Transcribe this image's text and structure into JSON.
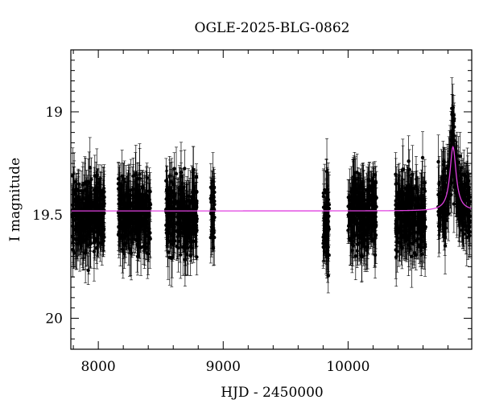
{
  "chart_data": {
    "type": "scatter",
    "title": "OGLE-2025-BLG-0862",
    "xlabel": "HJD - 2450000",
    "ylabel": "I magnitude",
    "xlim": [
      7780,
      10990
    ],
    "ylim": [
      20.15,
      18.7
    ],
    "y_inverted": true,
    "xticks": [
      8000,
      9000,
      10000
    ],
    "xtick_labels": [
      "8000",
      "9000",
      "10000"
    ],
    "yticks": [
      19,
      19.5,
      20
    ],
    "ytick_labels": [
      "19",
      "19.5",
      "20"
    ],
    "grid": false,
    "legend": "none",
    "colors": {
      "points": "#000000",
      "model": "#e040e0",
      "frame": "#000000"
    },
    "series": [
      {
        "kind": "observations",
        "seasons": [
          {
            "x_range": [
              7790,
              8050
            ],
            "mean_mag": 19.5,
            "scatter": 0.12,
            "error_bar": 0.1
          },
          {
            "x_range": [
              8160,
              8420
            ],
            "mean_mag": 19.5,
            "scatter": 0.12,
            "error_bar": 0.1
          },
          {
            "x_range": [
              8540,
              8790
            ],
            "mean_mag": 19.5,
            "scatter": 0.12,
            "error_bar": 0.1
          },
          {
            "x_range": [
              8900,
              8930
            ],
            "mean_mag": 19.5,
            "scatter": 0.1,
            "error_bar": 0.1
          },
          {
            "x_range": [
              9800,
              9850
            ],
            "mean_mag": 19.55,
            "scatter": 0.15,
            "error_bar": 0.12
          },
          {
            "x_range": [
              10000,
              10230
            ],
            "mean_mag": 19.5,
            "scatter": 0.13,
            "error_bar": 0.1
          },
          {
            "x_range": [
              10380,
              10620
            ],
            "mean_mag": 19.5,
            "scatter": 0.13,
            "error_bar": 0.1
          },
          {
            "x_range": [
              10720,
              10980
            ],
            "mean_mag": 19.35,
            "scatter": 0.12,
            "error_bar": 0.1
          }
        ]
      },
      {
        "kind": "model",
        "baseline_mag": 19.48,
        "peak_time": 10840,
        "peak_mag": 19.17,
        "timescale": 30
      }
    ]
  }
}
